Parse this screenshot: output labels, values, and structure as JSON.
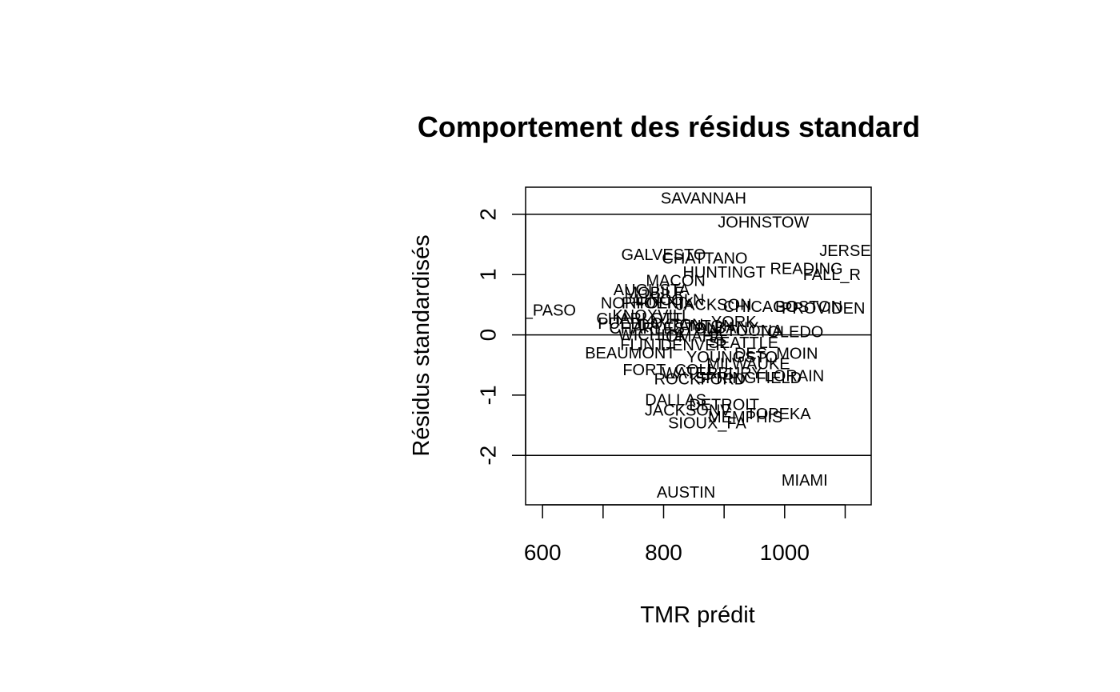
{
  "chart_data": {
    "type": "scatter",
    "title": "Comportement des résidus standard",
    "xlabel": "TMR prédit",
    "ylabel": "Résidus standardisés",
    "xlim": [
      572,
      1143
    ],
    "ylim": [
      -2.82,
      2.45
    ],
    "x_ticks": [
      600,
      700,
      800,
      900,
      1000,
      1100
    ],
    "x_tick_labels": [
      "600",
      "",
      "800",
      "",
      "1000",
      ""
    ],
    "y_ticks": [
      -2,
      -1,
      0,
      1,
      2
    ],
    "y_tick_labels": [
      "-2",
      "-1",
      "0",
      "1",
      "2"
    ],
    "reference_lines": [
      2,
      0,
      -2
    ],
    "grid": false,
    "legend": "none",
    "marker": "text-labels",
    "points": [
      {
        "label": "SAVANNAH",
        "x": 866,
        "y": 2.25
      },
      {
        "label": "JOHNSTOW",
        "x": 965,
        "y": 1.85
      },
      {
        "label": "JERSE",
        "x": 1100,
        "y": 1.38
      },
      {
        "label": "GALVESTO",
        "x": 800,
        "y": 1.31
      },
      {
        "label": "CHATTANO",
        "x": 868,
        "y": 1.25
      },
      {
        "label": "READING",
        "x": 1036,
        "y": 1.08
      },
      {
        "label": "HUNTINGT",
        "x": 900,
        "y": 1.02
      },
      {
        "label": "FALL_R",
        "x": 1078,
        "y": 0.98
      },
      {
        "label": "MACON",
        "x": 820,
        "y": 0.88
      },
      {
        "label": "AUGUSTA",
        "x": 780,
        "y": 0.73
      },
      {
        "label": "MOBILE",
        "x": 785,
        "y": 0.68
      },
      {
        "label": "LINCOLN",
        "x": 810,
        "y": 0.56
      },
      {
        "label": "NORFOLK",
        "x": 760,
        "y": 0.51
      },
      {
        "label": "PHOENIX",
        "x": 790,
        "y": 0.51
      },
      {
        "label": "JACKSON",
        "x": 883,
        "y": 0.48
      },
      {
        "label": "CHICAGO",
        "x": 960,
        "y": 0.45
      },
      {
        "label": "BOSTON",
        "x": 1040,
        "y": 0.45
      },
      {
        "label": "PROVIDEN",
        "x": 1064,
        "y": 0.42
      },
      {
        "label": "EL_PASO",
        "x": 596,
        "y": 0.39
      },
      {
        "label": "KNOXVILL",
        "x": 780,
        "y": 0.3
      },
      {
        "label": "CHARLOTT",
        "x": 760,
        "y": 0.25
      },
      {
        "label": "YORK",
        "x": 916,
        "y": 0.2
      },
      {
        "label": "PUEBLO",
        "x": 745,
        "y": 0.17
      },
      {
        "label": "DAYTON",
        "x": 812,
        "y": 0.15
      },
      {
        "label": "CANTON",
        "x": 862,
        "y": 0.13
      },
      {
        "label": "ALBANY",
        "x": 905,
        "y": 0.1
      },
      {
        "label": "CHARLESTON",
        "x": 800,
        "y": 0.09
      },
      {
        "label": "ALTOONA",
        "x": 935,
        "y": 0.05
      },
      {
        "label": "TOLEDO",
        "x": 1010,
        "y": 0.03
      },
      {
        "label": "WICHITA",
        "x": 780,
        "y": -0.02
      },
      {
        "label": "OMAHA",
        "x": 852,
        "y": -0.04
      },
      {
        "label": "SEATTLE",
        "x": 932,
        "y": -0.15
      },
      {
        "label": "FLINT",
        "x": 765,
        "y": -0.18
      },
      {
        "label": "DENVER",
        "x": 850,
        "y": -0.19
      },
      {
        "label": "DES_MOIN",
        "x": 986,
        "y": -0.33
      },
      {
        "label": "BEAUMONT",
        "x": 745,
        "y": -0.32
      },
      {
        "label": "YOUNGSTO",
        "x": 913,
        "y": -0.39
      },
      {
        "label": "MILWAUKE",
        "x": 940,
        "y": -0.5
      },
      {
        "label": "FORT_COLL",
        "x": 810,
        "y": -0.6
      },
      {
        "label": "WATERBURY",
        "x": 880,
        "y": -0.65
      },
      {
        "label": "ROCKFORD",
        "x": 860,
        "y": -0.75
      },
      {
        "label": "SPRINGFIELD",
        "x": 940,
        "y": -0.73
      },
      {
        "label": "LORAIN",
        "x": 1016,
        "y": -0.7
      },
      {
        "label": "DALLAS",
        "x": 820,
        "y": -1.1
      },
      {
        "label": "DETROIT",
        "x": 900,
        "y": -1.18
      },
      {
        "label": "JACKSONV",
        "x": 840,
        "y": -1.27
      },
      {
        "label": "TOPEKA",
        "x": 990,
        "y": -1.33
      },
      {
        "label": "MEMPHIS",
        "x": 935,
        "y": -1.38
      },
      {
        "label": "SIOUX_FA",
        "x": 872,
        "y": -1.48
      },
      {
        "label": "MIAMI",
        "x": 1033,
        "y": -2.43
      },
      {
        "label": "AUSTIN",
        "x": 837,
        "y": -2.63
      }
    ]
  }
}
